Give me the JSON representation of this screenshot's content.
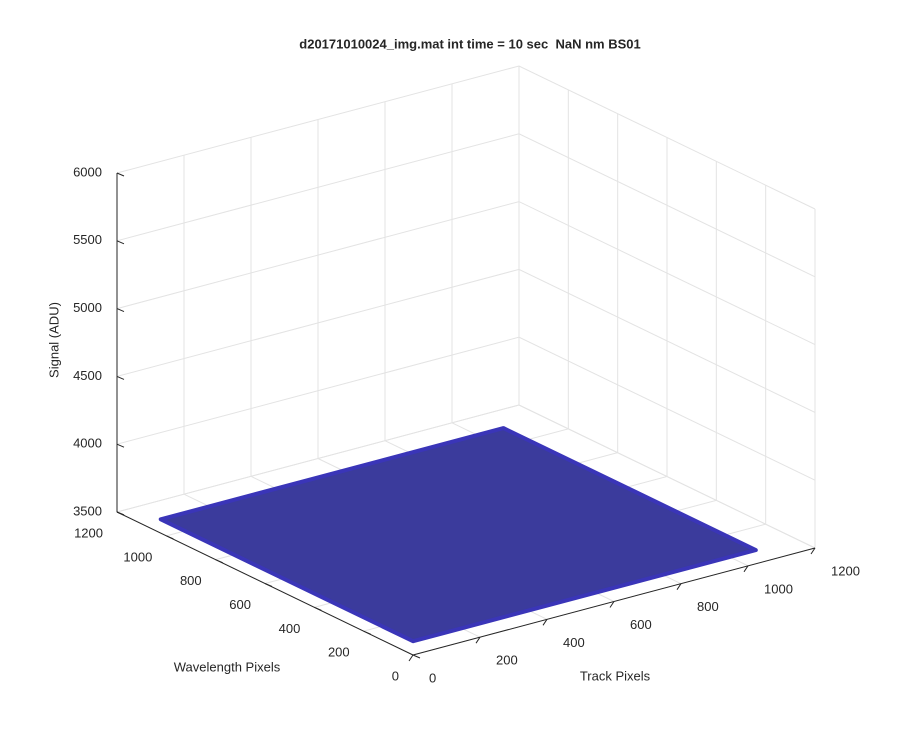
{
  "chart_data": {
    "type": "surface3d",
    "title": "d20171010024_img.mat int time = 10 sec  NaN nm BS01",
    "xlabel": "Track Pixels",
    "ylabel": "Wavelength Pixels",
    "zlabel": "Signal (ADU)",
    "xlim": [
      0,
      1200
    ],
    "ylim": [
      0,
      1200
    ],
    "zlim": [
      3500,
      6000
    ],
    "xticks": [
      0,
      200,
      400,
      600,
      800,
      1000,
      1200
    ],
    "yticks": [
      0,
      200,
      400,
      600,
      800,
      1000,
      1200
    ],
    "zticks": [
      3500,
      4000,
      4500,
      5000,
      5500,
      6000
    ],
    "grid": true,
    "color": "#3b3b9c",
    "surface": {
      "x": [
        1,
        1024
      ],
      "y": [
        1,
        1024
      ],
      "z": [
        [
          3600,
          3600
        ],
        [
          3600,
          3600
        ]
      ]
    }
  }
}
